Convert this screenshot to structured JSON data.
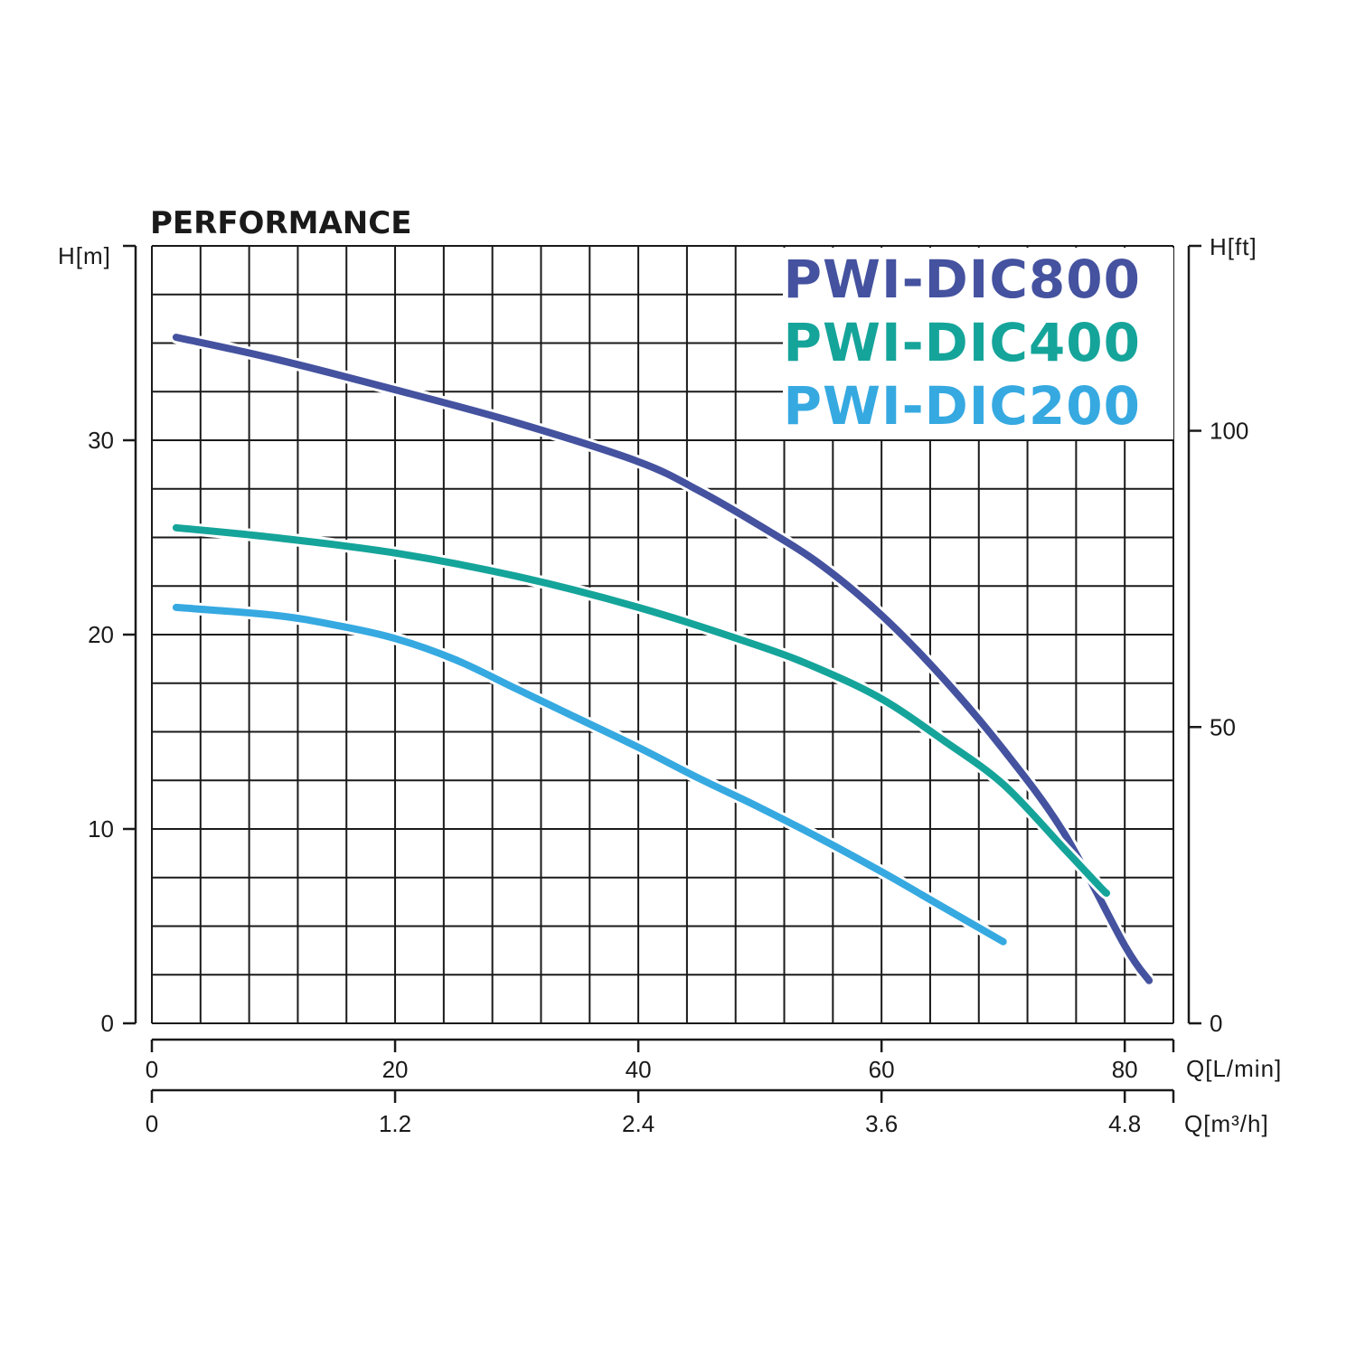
{
  "chart_data": {
    "type": "line",
    "title": "PERFORMANCE",
    "y_left": {
      "label": "H[m]",
      "ticks": [
        0,
        10,
        20,
        30
      ],
      "range": [
        0,
        40
      ]
    },
    "y_right": {
      "label": "H[ft]",
      "ticks": [
        0,
        50,
        100
      ],
      "range": [
        0,
        131.2
      ]
    },
    "x_top": {
      "label": "Q[L/min]",
      "ticks": [
        "0",
        "20",
        "40",
        "60",
        "80"
      ],
      "range": [
        0,
        84
      ]
    },
    "x_bottom": {
      "label": "Q[m³/h]",
      "ticks": [
        "0",
        "1.2",
        "2.4",
        "3.6",
        "4.8"
      ],
      "range": [
        0,
        5.04
      ]
    },
    "grid": true,
    "legend_position": "top-right",
    "series": [
      {
        "name": "PWI-DIC800",
        "color": "#44529f",
        "points": [
          [
            2,
            35.3
          ],
          [
            10,
            34.2
          ],
          [
            20,
            32.6
          ],
          [
            30,
            30.9
          ],
          [
            40,
            28.9
          ],
          [
            45,
            27.4
          ],
          [
            50,
            25.6
          ],
          [
            55,
            23.6
          ],
          [
            60,
            21.0
          ],
          [
            65,
            17.8
          ],
          [
            70,
            14.1
          ],
          [
            75,
            9.8
          ],
          [
            80,
            4.0
          ],
          [
            82,
            2.2
          ]
        ]
      },
      {
        "name": "PWI-DIC400",
        "color": "#15a49a",
        "points": [
          [
            2,
            25.5
          ],
          [
            10,
            25.0
          ],
          [
            20,
            24.2
          ],
          [
            30,
            23.0
          ],
          [
            40,
            21.4
          ],
          [
            50,
            19.4
          ],
          [
            55,
            18.2
          ],
          [
            60,
            16.7
          ],
          [
            65,
            14.6
          ],
          [
            70,
            12.3
          ],
          [
            75,
            9.0
          ],
          [
            78,
            7.0
          ],
          [
            78.5,
            6.7
          ]
        ]
      },
      {
        "name": "PWI-DIC200",
        "color": "#36a9e1",
        "points": [
          [
            2,
            21.4
          ],
          [
            10,
            21.0
          ],
          [
            15,
            20.5
          ],
          [
            20,
            19.8
          ],
          [
            25,
            18.7
          ],
          [
            30,
            17.2
          ],
          [
            35,
            15.7
          ],
          [
            40,
            14.2
          ],
          [
            45,
            12.6
          ],
          [
            50,
            11.1
          ],
          [
            55,
            9.5
          ],
          [
            60,
            7.8
          ],
          [
            65,
            6.0
          ],
          [
            70,
            4.2
          ]
        ]
      }
    ]
  }
}
